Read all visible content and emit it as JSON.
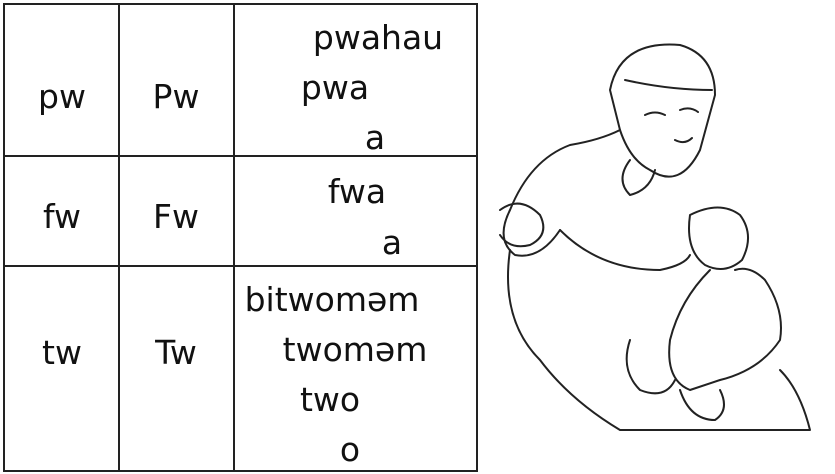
{
  "table": {
    "rows": [
      [
        "pw",
        "Pw",
        [
          "pwahau",
          "pwa",
          "a"
        ]
      ],
      [
        "fw",
        "Fw",
        [
          "fwa",
          "a"
        ]
      ],
      [
        "tw",
        "Tw",
        [
          "bitwoməm",
          "twoməm",
          "two",
          "o"
        ]
      ]
    ]
  }
}
